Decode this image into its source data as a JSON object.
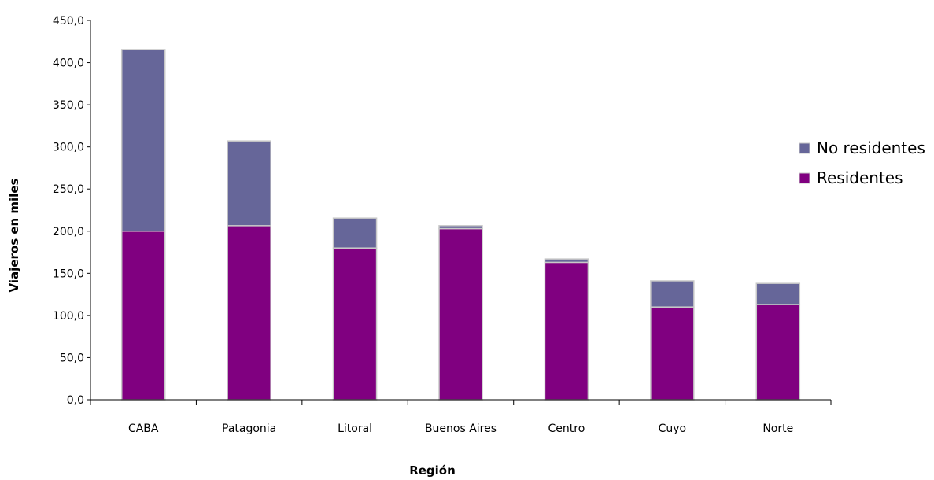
{
  "chart_data": {
    "type": "bar",
    "stacked": true,
    "categories": [
      "CABA",
      "Patagonia",
      "Litoral",
      "Buenos Aires",
      "Centro",
      "Cuyo",
      "Norte"
    ],
    "series": [
      {
        "name": "Residentes",
        "color": "#800080",
        "values": [
          200.0,
          206.5,
          180.0,
          203.0,
          163.0,
          110.0,
          113.0
        ]
      },
      {
        "name": "No residentes",
        "color": "#666699",
        "values": [
          215.5,
          100.5,
          35.5,
          3.5,
          4.0,
          31.0,
          25.0
        ]
      }
    ],
    "title": "",
    "xlabel": "Región",
    "ylabel": "Viajeros en miles",
    "ylim": [
      0,
      450
    ],
    "yticks": [
      "0,0",
      "50,0",
      "100,0",
      "150,0",
      "200,0",
      "250,0",
      "300,0",
      "350,0",
      "400,0",
      "450,0"
    ],
    "grid": false,
    "legend": {
      "position": "right",
      "order": [
        "No residentes",
        "Residentes"
      ]
    }
  }
}
